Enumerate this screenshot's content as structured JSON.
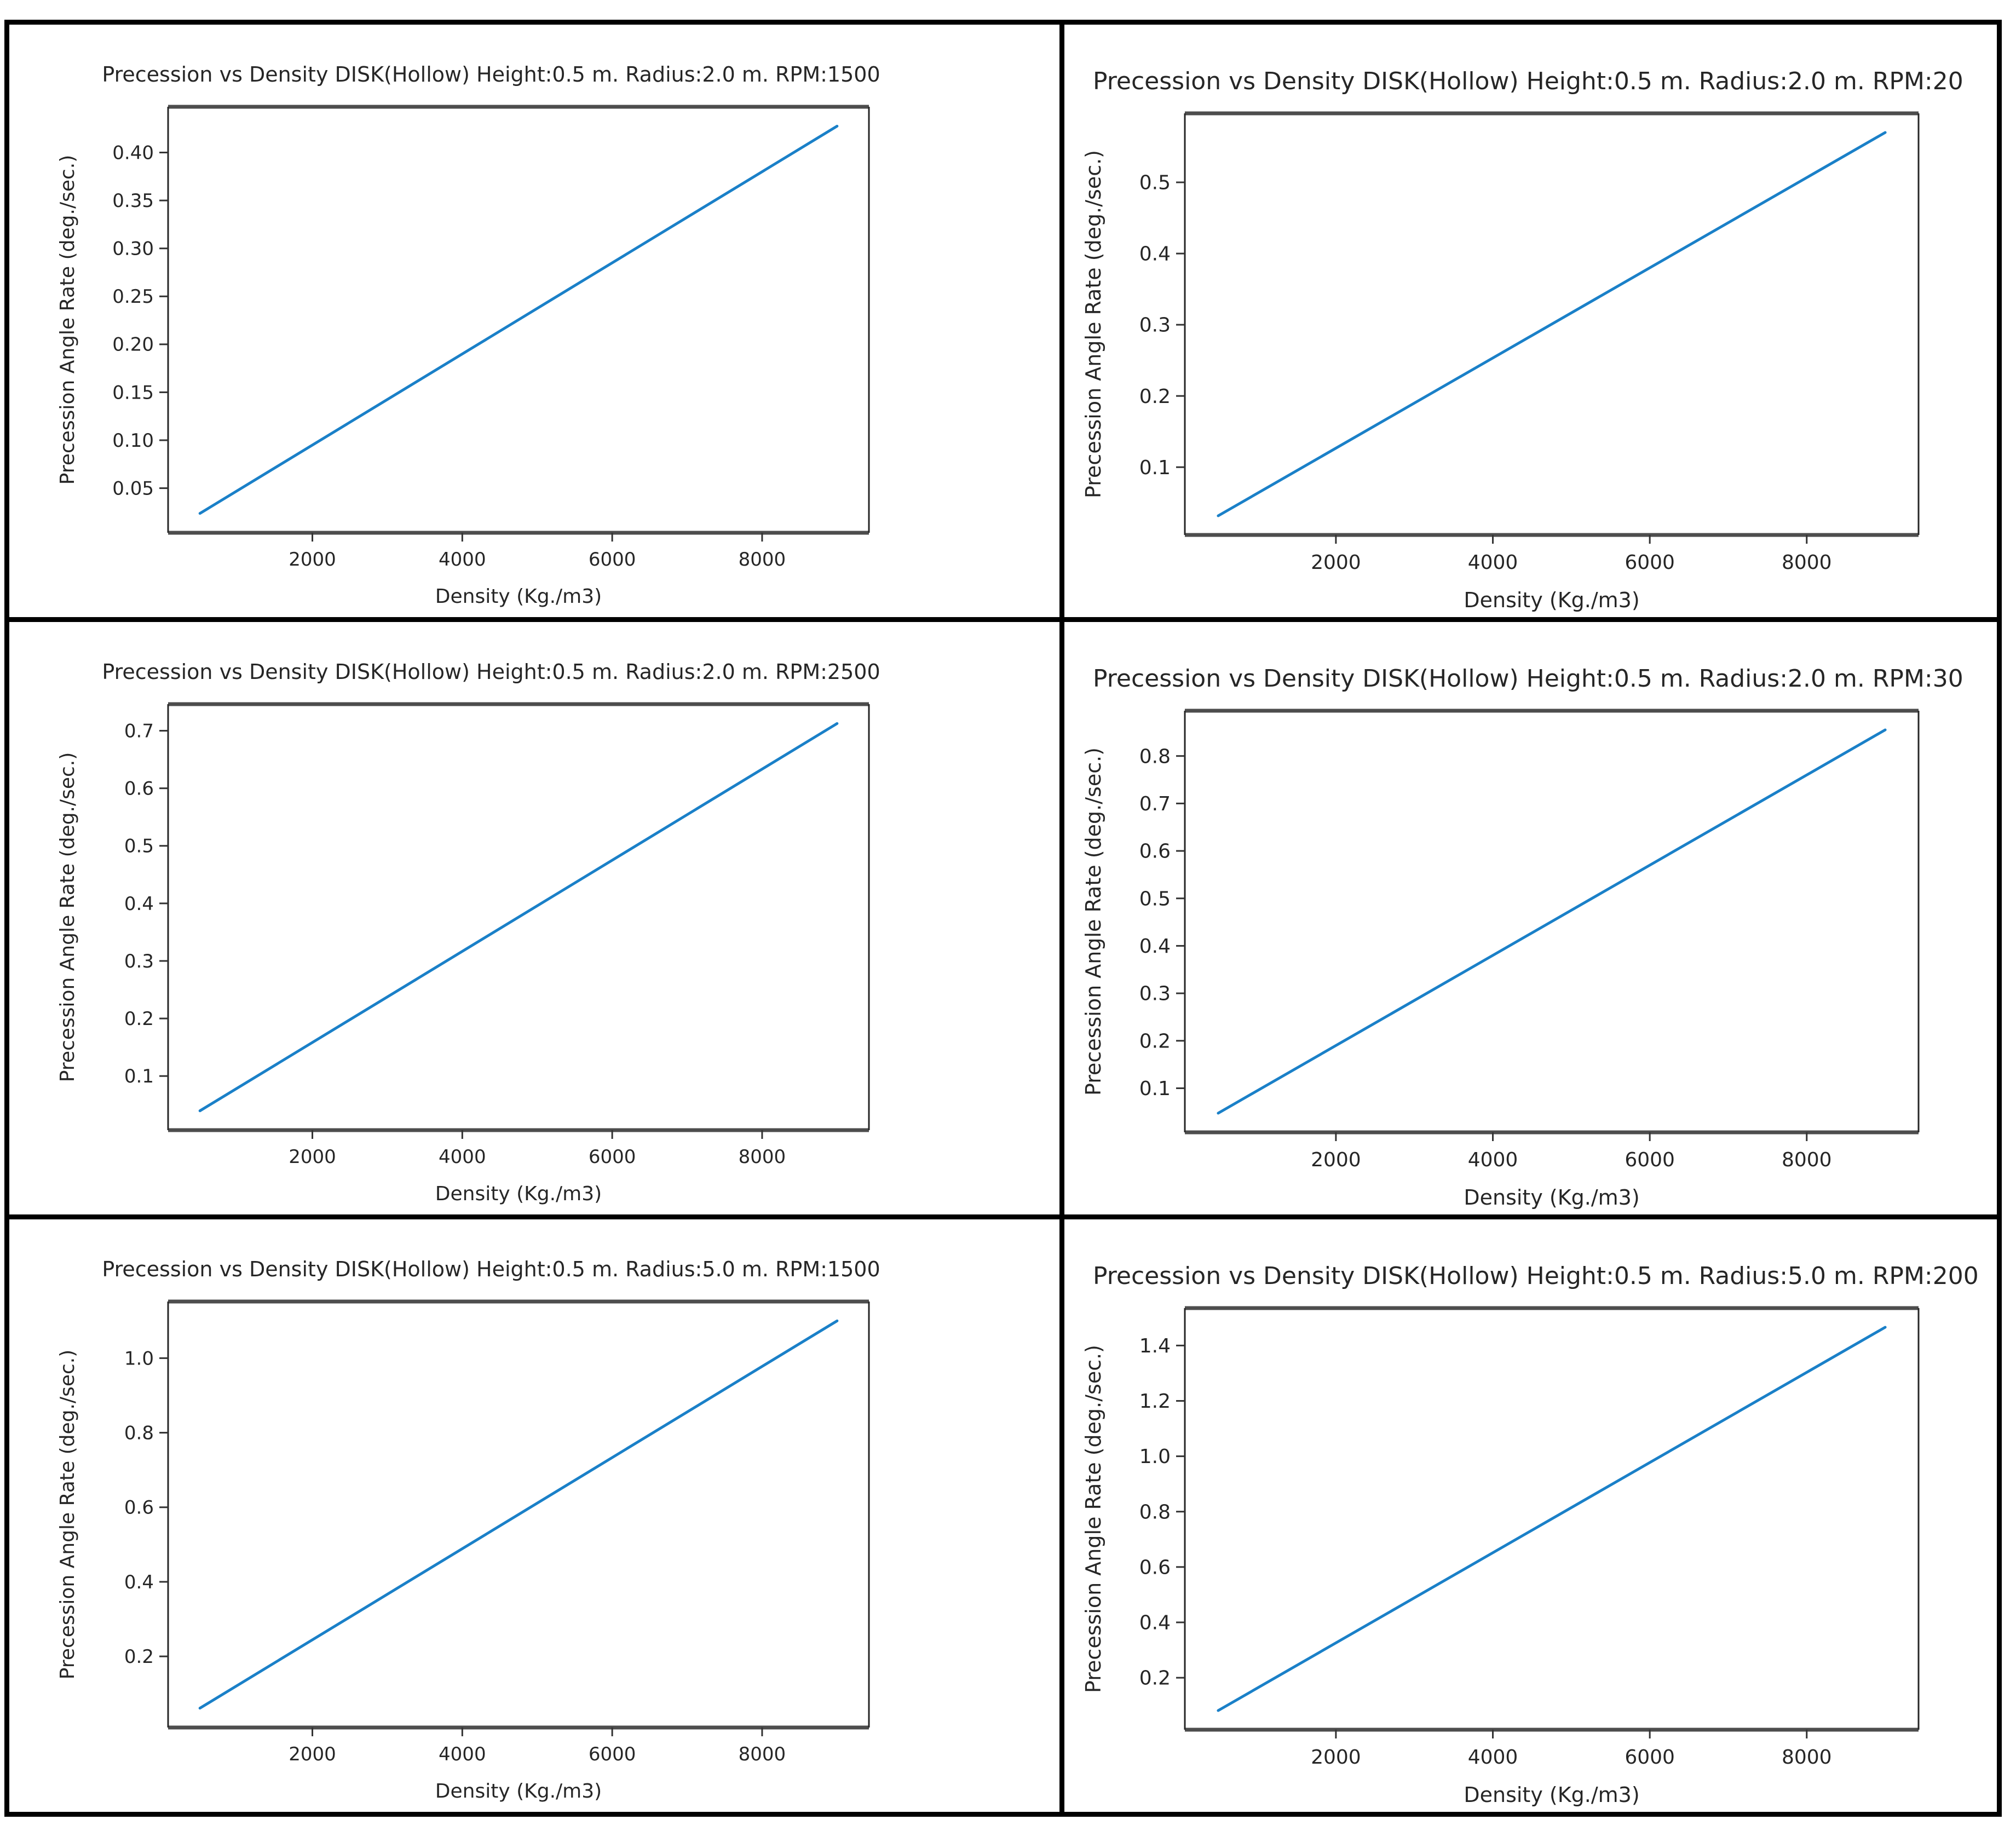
{
  "page": {
    "background": "#ffffff",
    "frame_color": "#000000",
    "grid_rows": 3,
    "grid_cols": 2
  },
  "colors": {
    "line": "#1a80c8",
    "spine_thick": "#4d4d4d",
    "spine_thin": "#262626",
    "tick": "#333333",
    "text": "#262626"
  },
  "chart_data": [
    {
      "type": "line",
      "title": "Precession vs Density DISK(Hollow) Height:0.5 m. Radius:2.0 m. RPM:1500",
      "title_clipped": false,
      "xlabel": "Density (Kg./m3)",
      "ylabel": "Precession Angle Rate (deg./sec.)",
      "x": [
        500,
        9000
      ],
      "y": [
        0.0237,
        0.4275
      ],
      "xticks": [
        "2000",
        "4000",
        "6000",
        "8000"
      ],
      "yticks": [
        "0.05",
        "0.10",
        "0.15",
        "0.20",
        "0.25",
        "0.30",
        "0.35",
        "0.40"
      ],
      "xlim": [
        75,
        9425
      ],
      "ylim": [
        0.0035,
        0.4477
      ],
      "line_color": "#1a80c8",
      "grid": false,
      "legend": null
    },
    {
      "type": "line",
      "title": "Precession vs Density DISK(Hollow) Height:0.5 m. Radius:2.0 m. RPM:20",
      "title_clipped": true,
      "xlabel": "Density (Kg./m3)",
      "ylabel": "Precession Angle Rate (deg./sec.)",
      "x": [
        500,
        9000
      ],
      "y": [
        0.0317,
        0.57
      ],
      "xticks": [
        "2000",
        "4000",
        "6000",
        "8000"
      ],
      "yticks": [
        "0.1",
        "0.2",
        "0.3",
        "0.4",
        "0.5"
      ],
      "xlim": [
        75,
        9425
      ],
      "ylim": [
        0.0048,
        0.5969
      ],
      "line_color": "#1a80c8",
      "grid": false,
      "legend": null
    },
    {
      "type": "line",
      "title": "Precession vs Density DISK(Hollow) Height:0.5 m. Radius:2.0 m. RPM:2500",
      "title_clipped": false,
      "xlabel": "Density (Kg./m3)",
      "ylabel": "Precession Angle Rate (deg./sec.)",
      "x": [
        500,
        9000
      ],
      "y": [
        0.0396,
        0.7125
      ],
      "xticks": [
        "2000",
        "4000",
        "6000",
        "8000"
      ],
      "yticks": [
        "0.1",
        "0.2",
        "0.3",
        "0.4",
        "0.5",
        "0.6",
        "0.7"
      ],
      "xlim": [
        75,
        9425
      ],
      "ylim": [
        0.006,
        0.7462
      ],
      "line_color": "#1a80c8",
      "grid": false,
      "legend": null
    },
    {
      "type": "line",
      "title": "Precession vs Density DISK(Hollow) Height:0.5 m. Radius:2.0 m. RPM:30",
      "title_clipped": true,
      "xlabel": "Density (Kg./m3)",
      "ylabel": "Precession Angle Rate (deg./sec.)",
      "x": [
        500,
        9000
      ],
      "y": [
        0.0475,
        0.855
      ],
      "xticks": [
        "2000",
        "4000",
        "6000",
        "8000"
      ],
      "yticks": [
        "0.1",
        "0.2",
        "0.3",
        "0.4",
        "0.5",
        "0.6",
        "0.7",
        "0.8"
      ],
      "xlim": [
        75,
        9425
      ],
      "ylim": [
        0.0071,
        0.8954
      ],
      "line_color": "#1a80c8",
      "grid": false,
      "legend": null
    },
    {
      "type": "line",
      "title": "Precession vs Density DISK(Hollow) Height:0.5 m. Radius:5.0 m. RPM:1500",
      "title_clipped": false,
      "xlabel": "Density (Kg./m3)",
      "ylabel": "Precession Angle Rate (deg./sec.)",
      "x": [
        500,
        9000
      ],
      "y": [
        0.0611,
        1.1
      ],
      "xticks": [
        "2000",
        "4000",
        "6000",
        "8000"
      ],
      "yticks": [
        "0.2",
        "0.4",
        "0.6",
        "0.8",
        "1.0"
      ],
      "xlim": [
        75,
        9425
      ],
      "ylim": [
        0.0092,
        1.1519
      ],
      "line_color": "#1a80c8",
      "grid": false,
      "legend": null
    },
    {
      "type": "line",
      "title": "Precession vs Density DISK(Hollow) Height:0.5 m. Radius:5.0 m. RPM:200",
      "title_clipped": true,
      "xlabel": "Density (Kg./m3)",
      "ylabel": "Precession Angle Rate (deg./sec.)",
      "x": [
        500,
        9000
      ],
      "y": [
        0.0815,
        1.466
      ],
      "xticks": [
        "2000",
        "4000",
        "6000",
        "8000"
      ],
      "yticks": [
        "0.2",
        "0.4",
        "0.6",
        "0.8",
        "1.0",
        "1.2",
        "1.4"
      ],
      "xlim": [
        75,
        9425
      ],
      "ylim": [
        0.0123,
        1.5352
      ],
      "line_color": "#1a80c8",
      "grid": false,
      "legend": null
    }
  ]
}
